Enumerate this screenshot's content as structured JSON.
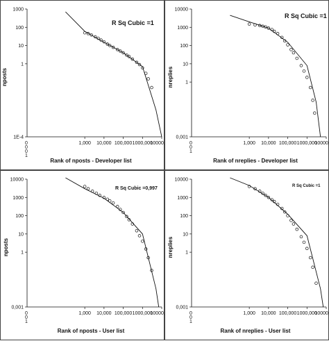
{
  "chart_data": [
    {
      "type": "scatter",
      "title": "",
      "annotation": "R Sq Cubic =1",
      "xlabel": "Rank of nposts - Developer list",
      "ylabel": "nposts",
      "x_scale": "log",
      "y_scale": "log",
      "xlim": [
        1,
        10000000
      ],
      "ylim": [
        0.0001,
        1000
      ],
      "x_ticks": [
        "1,000",
        "10,000",
        "100,000",
        "1000,000",
        "10000,000"
      ],
      "x_small_ticks": [
        "0",
        "0",
        "0",
        "1"
      ],
      "y_ticks": [
        "1000",
        "100",
        "10",
        "1",
        "1E-4"
      ],
      "series": [
        {
          "kind": "points",
          "x": [
            1000,
            1500,
            2200,
            3500,
            5000,
            7000,
            10000,
            15000,
            20000,
            30000,
            50000,
            70000,
            100000,
            150000,
            200000,
            300000,
            500000,
            700000,
            1000000,
            1500000,
            2000000,
            3000000
          ],
          "y": [
            50,
            45,
            38,
            30,
            25,
            20,
            16,
            12,
            10,
            8,
            6,
            5,
            4,
            3,
            2.5,
            1.8,
            1.2,
            0.9,
            0.6,
            0.3,
            0.15,
            0.05
          ]
        },
        {
          "kind": "fit",
          "x": [
            100,
            1000,
            10000,
            100000,
            1000000,
            5000000,
            10000000
          ],
          "y": [
            700,
            60,
            15,
            4,
            0.7,
            0.003,
            0.0001
          ]
        }
      ]
    },
    {
      "type": "scatter",
      "title": "",
      "annotation": "R Sq Cubic =1",
      "xlabel": "Rank of nreplies - Developer list",
      "ylabel": "nreplies",
      "x_scale": "log",
      "y_scale": "log",
      "xlim": [
        1,
        10000000
      ],
      "ylim": [
        0.001,
        10000
      ],
      "x_ticks": [
        "1,000",
        "10,000",
        "100,000",
        "1000,000",
        "10000,000"
      ],
      "x_small_ticks": [
        "0",
        "0",
        "1"
      ],
      "y_ticks": [
        "10000",
        "1000",
        "100",
        "10",
        "1",
        "0,001"
      ],
      "series": [
        {
          "kind": "points",
          "x": [
            1000,
            2000,
            3500,
            5000,
            7000,
            10000,
            15000,
            20000,
            30000,
            50000,
            70000,
            100000,
            150000,
            200000,
            300000,
            500000,
            700000,
            1000000,
            1500000,
            2000000,
            2500000
          ],
          "y": [
            1500,
            1350,
            1250,
            1150,
            1050,
            900,
            750,
            600,
            450,
            280,
            180,
            110,
            60,
            40,
            20,
            8,
            4,
            1.8,
            0.5,
            0.1,
            0.02
          ]
        },
        {
          "kind": "fit",
          "x": [
            100,
            1000,
            10000,
            100000,
            1000000,
            3000000,
            5000000
          ],
          "y": [
            4500,
            2000,
            900,
            150,
            8,
            0.08,
            0.001
          ]
        }
      ]
    },
    {
      "type": "scatter",
      "title": "",
      "annotation": "R Sq Cubic =0,997",
      "xlabel": "Rank of nposts - User list",
      "ylabel": "nposts",
      "x_scale": "log",
      "y_scale": "log",
      "xlim": [
        1,
        10000000
      ],
      "ylim": [
        0.001,
        10000
      ],
      "x_ticks": [
        "1,000",
        "10,000",
        "100,000",
        "1000,000",
        "10000,000"
      ],
      "x_small_ticks": [
        "0",
        "0",
        "1"
      ],
      "y_ticks": [
        "10000",
        "1000",
        "100",
        "10",
        "1",
        "0,001"
      ],
      "series": [
        {
          "kind": "points",
          "x": [
            1000,
            1500,
            2500,
            4000,
            6000,
            10000,
            15000,
            20000,
            30000,
            50000,
            70000,
            100000,
            150000,
            200000,
            300000,
            500000,
            700000,
            1000000,
            1500000,
            2000000,
            3000000
          ],
          "y": [
            4000,
            3000,
            2200,
            1700,
            1300,
            1000,
            800,
            650,
            500,
            320,
            220,
            150,
            90,
            60,
            35,
            15,
            8,
            4,
            1.5,
            0.5,
            0.1
          ]
        },
        {
          "kind": "fit",
          "x": [
            100,
            1000,
            10000,
            100000,
            1000000,
            5000000,
            7000000
          ],
          "y": [
            20000,
            3000,
            900,
            150,
            10,
            0.01,
            0.001
          ]
        }
      ]
    },
    {
      "type": "scatter",
      "title": "",
      "annotation": "R Sq Cubic =1",
      "xlabel": "Rank of nreplies - User list",
      "ylabel": "nreplies",
      "x_scale": "log",
      "y_scale": "log",
      "xlim": [
        1,
        10000000
      ],
      "ylim": [
        0.001,
        10000
      ],
      "x_ticks": [
        "1,000",
        "10,000",
        "100,000",
        "1000,000",
        "10000,000"
      ],
      "x_small_ticks": [
        "0",
        "0",
        "1"
      ],
      "y_ticks": [
        "10000",
        "1000",
        "100",
        "10",
        "1",
        "0,001"
      ],
      "series": [
        {
          "kind": "points",
          "x": [
            1000,
            2000,
            3500,
            5000,
            7000,
            10000,
            15000,
            20000,
            30000,
            50000,
            70000,
            100000,
            150000,
            200000,
            300000,
            500000,
            700000,
            1000000,
            1500000,
            2000000,
            3000000
          ],
          "y": [
            4000,
            3000,
            2200,
            1700,
            1300,
            1000,
            750,
            600,
            420,
            250,
            160,
            100,
            55,
            35,
            18,
            7,
            3.5,
            1.6,
            0.5,
            0.15,
            0.02
          ]
        },
        {
          "kind": "fit",
          "x": [
            100,
            1000,
            10000,
            100000,
            1000000,
            5000000,
            7000000
          ],
          "y": [
            12000,
            4500,
            1000,
            120,
            8,
            0.01,
            0.001
          ]
        }
      ]
    }
  ]
}
